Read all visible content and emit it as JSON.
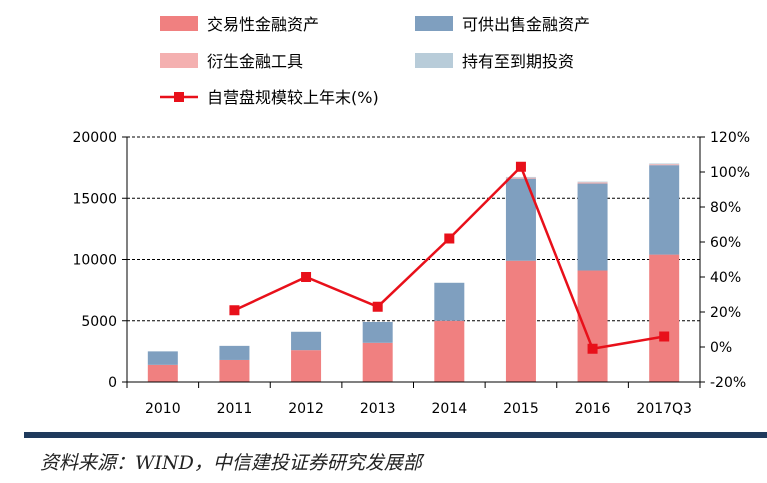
{
  "chart_data": {
    "type": "bar",
    "stacked": true,
    "categories": [
      "2010",
      "2011",
      "2012",
      "2013",
      "2014",
      "2015",
      "2016",
      "2017Q3"
    ],
    "series": [
      {
        "name": "交易性金融资产",
        "values": [
          1400,
          1800,
          2600,
          3200,
          5000,
          9900,
          9100,
          10400
        ],
        "color": "#f08080"
      },
      {
        "name": "可供出售金融资产",
        "values": [
          1100,
          1150,
          1500,
          1700,
          3100,
          6700,
          7100,
          7300
        ],
        "color": "#7f9fbf"
      },
      {
        "name": "衍生金融工具",
        "values": [
          0,
          0,
          0,
          0,
          0,
          80,
          100,
          80
        ],
        "color": "#f4b0b0"
      },
      {
        "name": "持有至到期投资",
        "values": [
          0,
          0,
          0,
          0,
          0,
          60,
          60,
          60
        ],
        "color": "#b8ccd9"
      }
    ],
    "line_series": {
      "name": "自营盘规模较上年末(%)",
      "values": [
        null,
        21,
        40,
        23,
        62,
        103,
        -1,
        6
      ],
      "color": "#e8101a"
    },
    "y_left": {
      "min": 0,
      "max": 20000,
      "ticks": [
        0,
        5000,
        10000,
        15000,
        20000
      ]
    },
    "y_right": {
      "min": -20,
      "max": 120,
      "ticks": [
        -20,
        0,
        20,
        40,
        60,
        80,
        100,
        120
      ],
      "tick_labels": [
        "-20%",
        "0%",
        "20%",
        "40%",
        "60%",
        "80%",
        "100%",
        "120%"
      ]
    },
    "grid": "dashed horizontal",
    "legend": "top"
  },
  "source_text": "资料来源：WIND，中信建投证券研究发展部"
}
